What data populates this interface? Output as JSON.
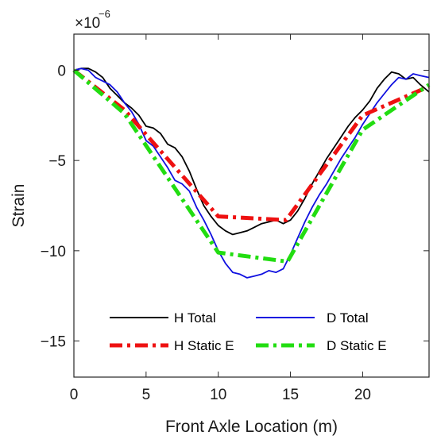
{
  "chart_data": {
    "type": "line",
    "title": "",
    "xlabel": "Front Axle Location (m)",
    "ylabel": "Strain",
    "exponent_base": "×10",
    "exponent_power": "−6",
    "xlim": [
      0,
      24.6
    ],
    "ylim": [
      -17,
      2
    ],
    "x_ticks": [
      0,
      5,
      10,
      15,
      20
    ],
    "x_tick_labels": [
      "0",
      "5",
      "10",
      "15",
      "20"
    ],
    "y_ticks": [
      0,
      -5,
      -10,
      -15
    ],
    "y_tick_labels": [
      "0",
      "−5",
      "−10",
      "−15"
    ],
    "grid": false,
    "legend": {
      "placement": "bottom-center",
      "columns": 2
    },
    "series": [
      {
        "name": "H Total",
        "color": "#000000",
        "style": "solid",
        "x": [
          0,
          0.5,
          1,
          1.5,
          2,
          2.5,
          3,
          3.5,
          4,
          4.5,
          5,
          5.5,
          6,
          6.5,
          7,
          7.5,
          8,
          8.5,
          9,
          9.5,
          10,
          10.5,
          11,
          11.5,
          12,
          12.5,
          13,
          13.5,
          14,
          14.5,
          15,
          15.5,
          16,
          16.5,
          17,
          17.5,
          18,
          18.5,
          19,
          19.5,
          20,
          20.5,
          21,
          21.5,
          22,
          22.5,
          23,
          23.5,
          24,
          24.6
        ],
        "y": [
          0,
          0.1,
          0.1,
          -0.1,
          -0.4,
          -1.0,
          -1.4,
          -1.8,
          -2.1,
          -2.5,
          -3.1,
          -3.2,
          -3.5,
          -4.1,
          -4.3,
          -4.8,
          -5.6,
          -6.6,
          -7.5,
          -8.1,
          -8.6,
          -8.9,
          -9.1,
          -9.0,
          -8.9,
          -8.7,
          -8.5,
          -8.4,
          -8.3,
          -8.5,
          -8.3,
          -7.8,
          -7.1,
          -6.3,
          -5.6,
          -4.9,
          -4.3,
          -3.7,
          -3.1,
          -2.6,
          -2.2,
          -1.7,
          -1.0,
          -0.5,
          -0.1,
          -0.2,
          -0.5,
          -0.4,
          -0.8,
          -1.2
        ]
      },
      {
        "name": "D Total",
        "color": "#1010e0",
        "style": "solid",
        "x": [
          0,
          0.5,
          1,
          1.5,
          2,
          2.5,
          3,
          3.5,
          4,
          4.5,
          5,
          5.5,
          6,
          6.5,
          7,
          7.5,
          8,
          8.5,
          9,
          9.5,
          10,
          10.5,
          11,
          11.5,
          12,
          12.5,
          13,
          13.5,
          14,
          14.5,
          15,
          15.5,
          16,
          16.5,
          17,
          17.5,
          18,
          18.5,
          19,
          19.5,
          20,
          20.5,
          21,
          21.5,
          22,
          22.5,
          23,
          23.5,
          24,
          24.6
        ],
        "y": [
          0,
          0.1,
          0.0,
          -0.4,
          -0.6,
          -0.8,
          -1.2,
          -1.8,
          -2.3,
          -3.0,
          -3.9,
          -4.2,
          -4.8,
          -5.4,
          -6.1,
          -6.3,
          -6.7,
          -7.6,
          -8.3,
          -9.1,
          -10.0,
          -10.7,
          -11.2,
          -11.3,
          -11.5,
          -11.4,
          -11.3,
          -11.1,
          -11.2,
          -11.0,
          -10.2,
          -9.3,
          -8.4,
          -7.6,
          -6.9,
          -6.3,
          -5.6,
          -4.9,
          -4.3,
          -3.7,
          -3.0,
          -2.4,
          -1.8,
          -1.3,
          -0.8,
          -0.4,
          -0.5,
          -0.2,
          -0.3,
          -0.4
        ]
      },
      {
        "name": "H Static E",
        "color": "#ee1111",
        "style": "dashdot",
        "x": [
          0,
          3.5,
          10.0,
          14.7,
          20.0,
          24.6
        ],
        "y": [
          0,
          -2.2,
          -8.1,
          -8.3,
          -2.5,
          -0.9
        ]
      },
      {
        "name": "D Static E",
        "color": "#22dd11",
        "style": "dashdot",
        "x": [
          0,
          3.5,
          10.0,
          14.8,
          20.0,
          24.6
        ],
        "y": [
          0,
          -2.4,
          -10.1,
          -10.6,
          -3.3,
          -0.8
        ]
      }
    ]
  }
}
